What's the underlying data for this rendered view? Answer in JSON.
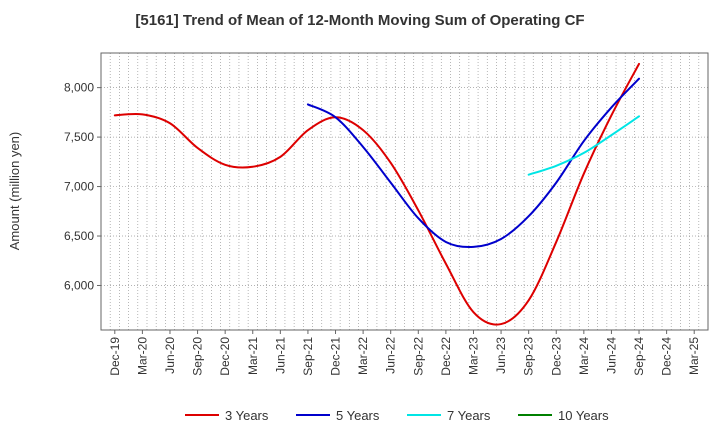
{
  "chart_data": {
    "type": "line",
    "title": "[5161]  Trend of Mean of 12-Month Moving Sum of Operating CF",
    "xlabel": "",
    "ylabel": "Amount (million yen)",
    "ylim": [
      5550,
      8350
    ],
    "yticks": [
      6000,
      6500,
      7000,
      7500,
      8000
    ],
    "ytick_labels": [
      "6,000",
      "6,500",
      "7,000",
      "7,500",
      "8,000"
    ],
    "x_categories": [
      "Dec-19",
      "Mar-20",
      "Jun-20",
      "Sep-20",
      "Dec-20",
      "Mar-21",
      "Jun-21",
      "Sep-21",
      "Dec-21",
      "Mar-22",
      "Jun-22",
      "Sep-22",
      "Dec-22",
      "Mar-23",
      "Jun-23",
      "Sep-23",
      "Dec-23",
      "Mar-24",
      "Jun-24",
      "Sep-24",
      "Dec-24",
      "Mar-25"
    ],
    "x_tick_labels": [
      "Dec-19",
      "Mar-20",
      "Jun-20",
      "Sep-20",
      "Dec-20",
      "Mar-21",
      "Jun-21",
      "Sep-21",
      "Dec-21",
      "Mar-22",
      "Jun-22",
      "Sep-22",
      "Dec-22",
      "Mar-23",
      "Jun-23",
      "Sep-23",
      "Dec-23",
      "Mar-24",
      "Jun-24",
      "Sep-24",
      "Dec-24",
      "Mar-25"
    ],
    "grid": true,
    "legend_position": "bottom",
    "series": [
      {
        "name": "3 Years",
        "color": "#dd0000",
        "values": [
          7720,
          7730,
          7640,
          7390,
          7220,
          7200,
          7300,
          7570,
          7700,
          7570,
          7240,
          6760,
          6220,
          5730,
          5610,
          5850,
          6440,
          7130,
          7720,
          8240,
          null,
          null
        ]
      },
      {
        "name": "5 Years",
        "color": "#0000cc",
        "values": [
          null,
          null,
          null,
          null,
          null,
          null,
          null,
          7830,
          7700,
          7400,
          7040,
          6680,
          6440,
          6390,
          6470,
          6700,
          7040,
          7460,
          7800,
          8090,
          null,
          null
        ]
      },
      {
        "name": "7 Years",
        "color": "#00e5e5",
        "values": [
          null,
          null,
          null,
          null,
          null,
          null,
          null,
          null,
          null,
          null,
          null,
          null,
          null,
          null,
          null,
          7120,
          7210,
          7340,
          7520,
          7710,
          null,
          null
        ]
      },
      {
        "name": "10 Years",
        "color": "#008000",
        "values": [
          null,
          null,
          null,
          null,
          null,
          null,
          null,
          null,
          null,
          null,
          null,
          null,
          null,
          null,
          null,
          null,
          null,
          null,
          null,
          null,
          null,
          null
        ]
      }
    ]
  }
}
